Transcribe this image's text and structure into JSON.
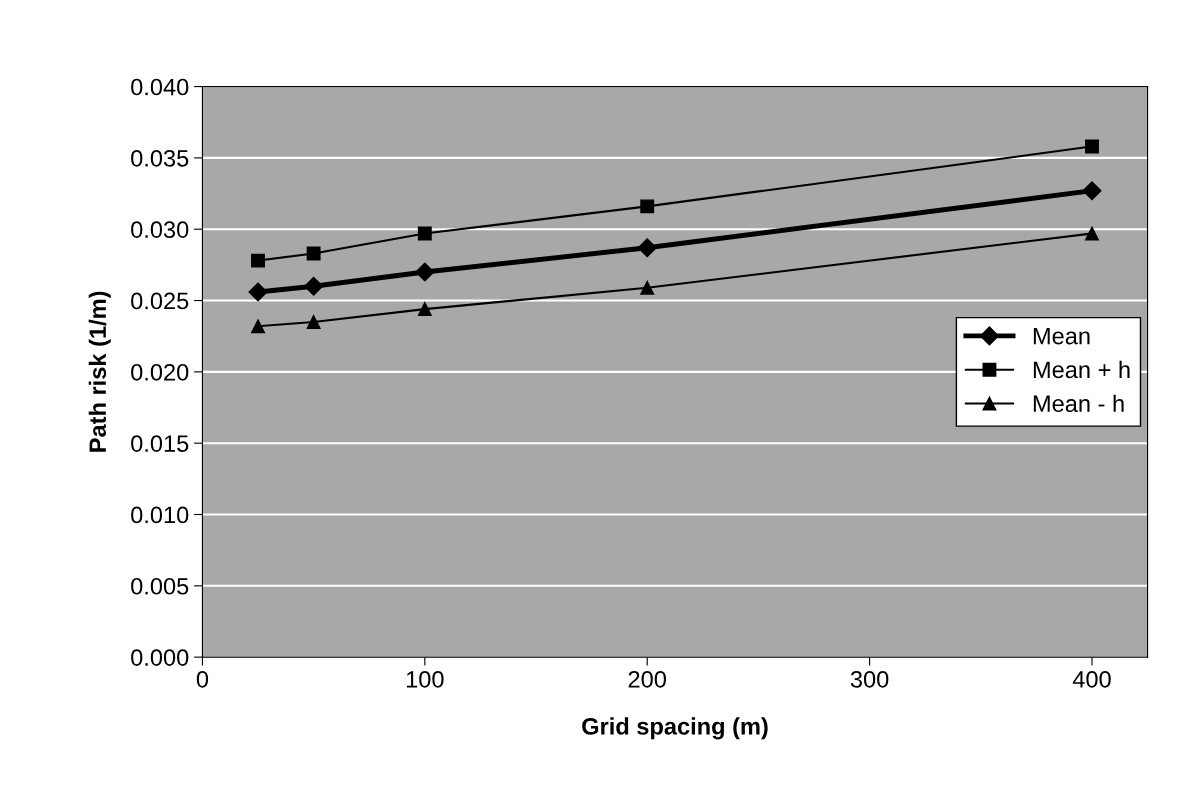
{
  "chart_data": {
    "type": "line",
    "xlabel": "Grid spacing (m)",
    "ylabel": "Path risk (1/m)",
    "x": [
      25,
      50,
      100,
      200,
      400
    ],
    "series": [
      {
        "name": "Mean",
        "color": "#000000",
        "marker": "diamond",
        "values": [
          0.0256,
          0.026,
          0.027,
          0.0287,
          0.0327
        ]
      },
      {
        "name": "Mean + h",
        "color": "#000000",
        "marker": "square",
        "values": [
          0.0278,
          0.0283,
          0.0297,
          0.0316,
          0.0358
        ]
      },
      {
        "name": "Mean - h",
        "color": "#000000",
        "marker": "triangle",
        "values": [
          0.0232,
          0.0235,
          0.0244,
          0.0259,
          0.0297
        ]
      }
    ],
    "xlim": [
      0,
      425
    ],
    "xticks": [
      0,
      100,
      200,
      300,
      400
    ],
    "ylim": [
      0,
      0.04
    ],
    "yticks": [
      {
        "value": 0,
        "label": "0.000"
      },
      {
        "value": 0.005,
        "label": "0.005"
      },
      {
        "value": 0.01,
        "label": "0.010"
      },
      {
        "value": 0.015,
        "label": "0.015"
      },
      {
        "value": 0.02,
        "label": "0.020"
      },
      {
        "value": 0.025,
        "label": "0.025"
      },
      {
        "value": 0.03,
        "label": "0.030"
      },
      {
        "value": 0.035,
        "label": "0.035"
      },
      {
        "value": 0.04,
        "label": "0.040"
      }
    ],
    "grid": "y",
    "legend": "center right",
    "line_style": "solid"
  }
}
